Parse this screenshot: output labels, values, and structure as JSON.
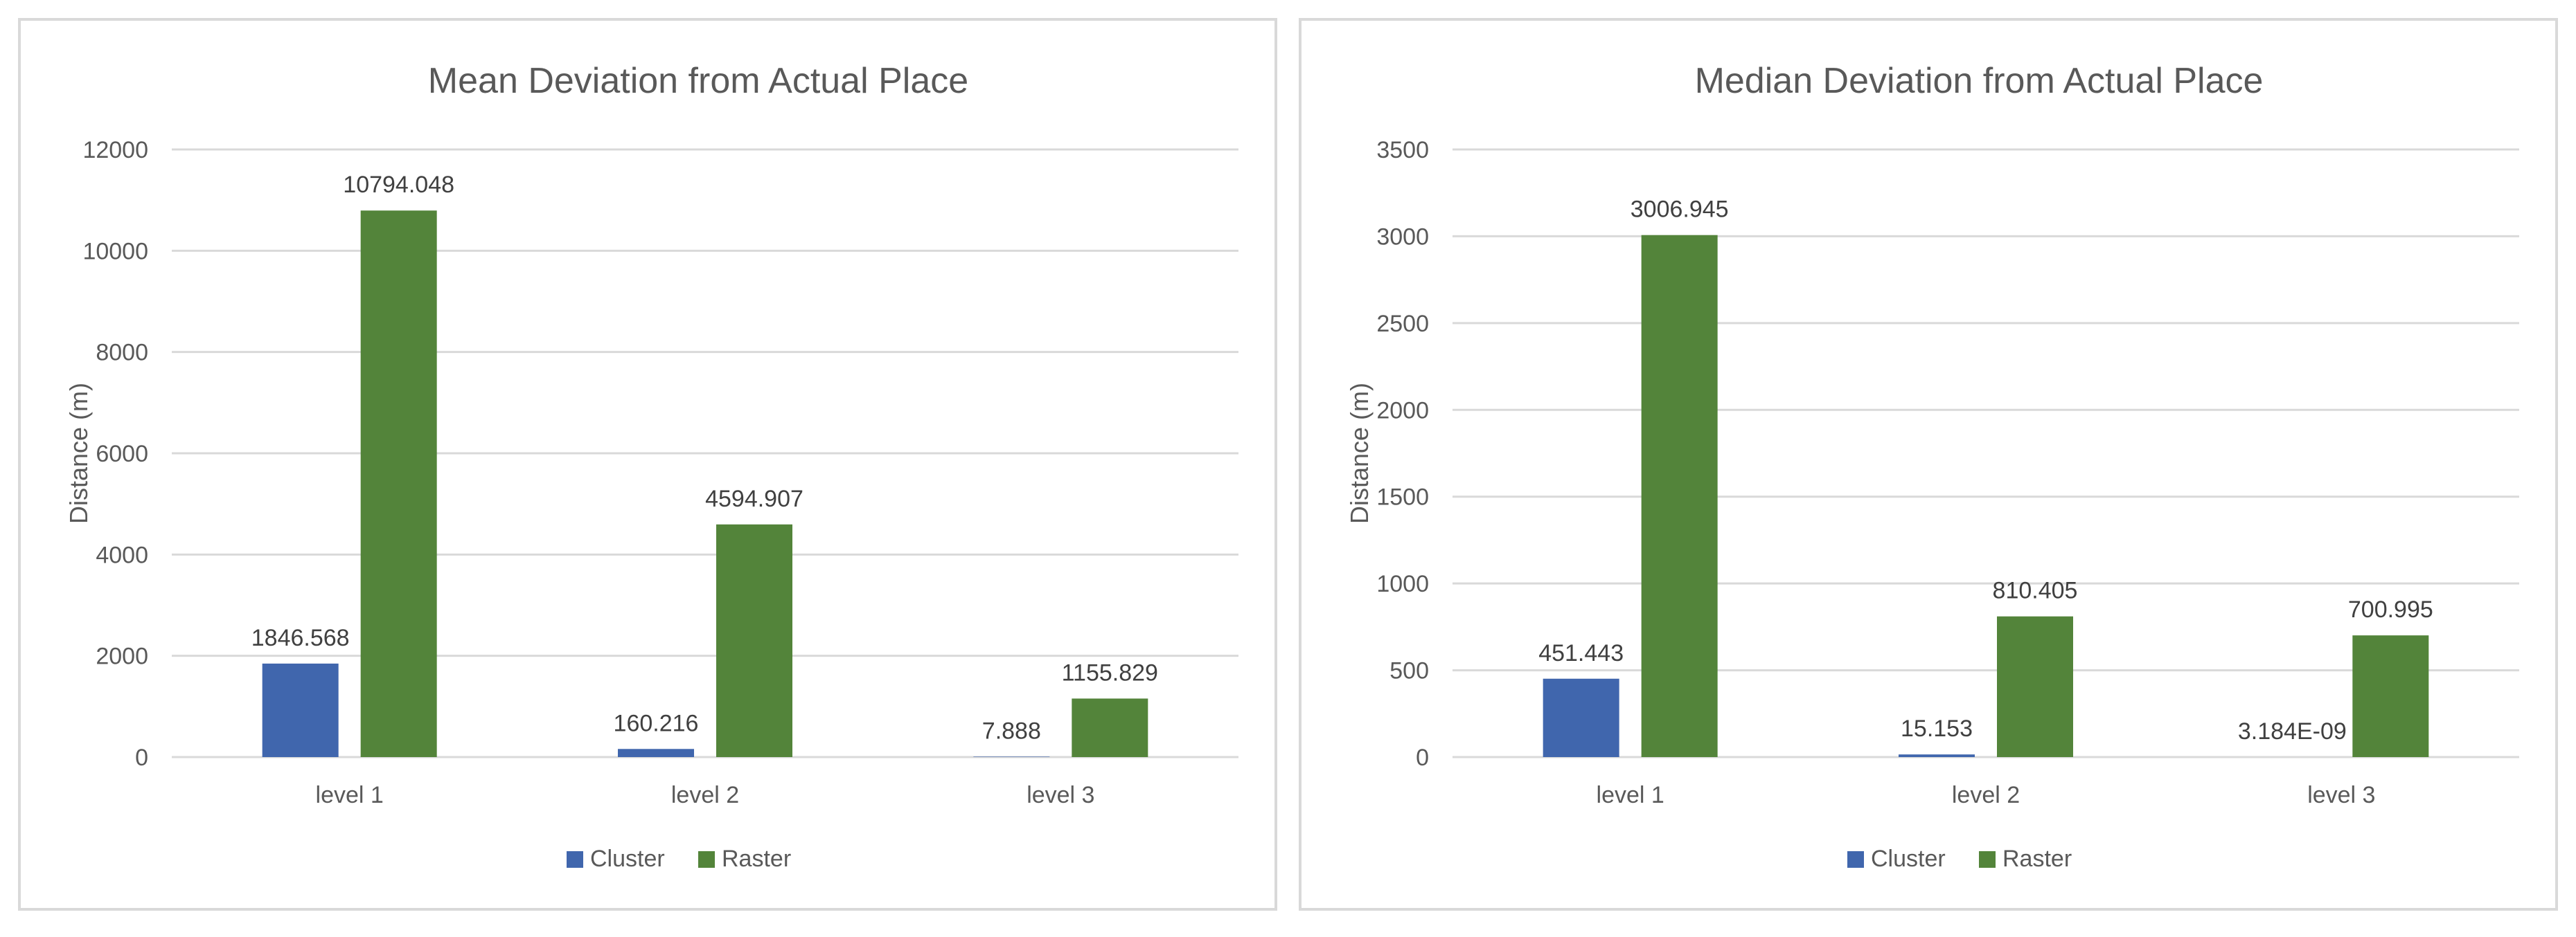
{
  "colors": {
    "cluster": "#4066ad",
    "raster": "#53843a",
    "gridline": "#d9d9d9",
    "text": "#595959",
    "label_text": "#404040"
  },
  "chart_data": [
    {
      "type": "bar",
      "title": "Mean Deviation from Actual Place",
      "xlabel": "",
      "ylabel": "Distance (m)",
      "categories": [
        "level 1",
        "level 2",
        "level 3"
      ],
      "ylim": [
        0,
        12000
      ],
      "yticks": [
        0,
        2000,
        4000,
        6000,
        8000,
        10000,
        12000
      ],
      "ytick_labels": [
        "0",
        "2000",
        "4000",
        "6000",
        "8000",
        "10000",
        "12000"
      ],
      "grid": true,
      "legend_position": "bottom",
      "series": [
        {
          "name": "Cluster",
          "color": "#4066ad",
          "values": [
            1846.568,
            160.216,
            7.888
          ],
          "labels": [
            "1846.568",
            "160.216",
            "7.888"
          ]
        },
        {
          "name": "Raster",
          "color": "#53843a",
          "values": [
            10794.048,
            4594.907,
            1155.829
          ],
          "labels": [
            "10794.048",
            "4594.907",
            "1155.829"
          ]
        }
      ]
    },
    {
      "type": "bar",
      "title": "Median Deviation from Actual Place",
      "xlabel": "",
      "ylabel": "Distance (m)",
      "categories": [
        "level 1",
        "level 2",
        "level 3"
      ],
      "ylim": [
        0,
        3500
      ],
      "yticks": [
        0,
        500,
        1000,
        1500,
        2000,
        2500,
        3000,
        3500
      ],
      "ytick_labels": [
        "0",
        "500",
        "1000",
        "1500",
        "2000",
        "2500",
        "3000",
        "3500"
      ],
      "grid": true,
      "legend_position": "bottom",
      "series": [
        {
          "name": "Cluster",
          "color": "#4066ad",
          "values": [
            451.443,
            15.153,
            3.184e-09
          ],
          "labels": [
            "451.443",
            "15.153",
            "3.184E-09"
          ]
        },
        {
          "name": "Raster",
          "color": "#53843a",
          "values": [
            3006.945,
            810.405,
            700.995
          ],
          "labels": [
            "3006.945",
            "810.405",
            "700.995"
          ]
        }
      ]
    }
  ]
}
